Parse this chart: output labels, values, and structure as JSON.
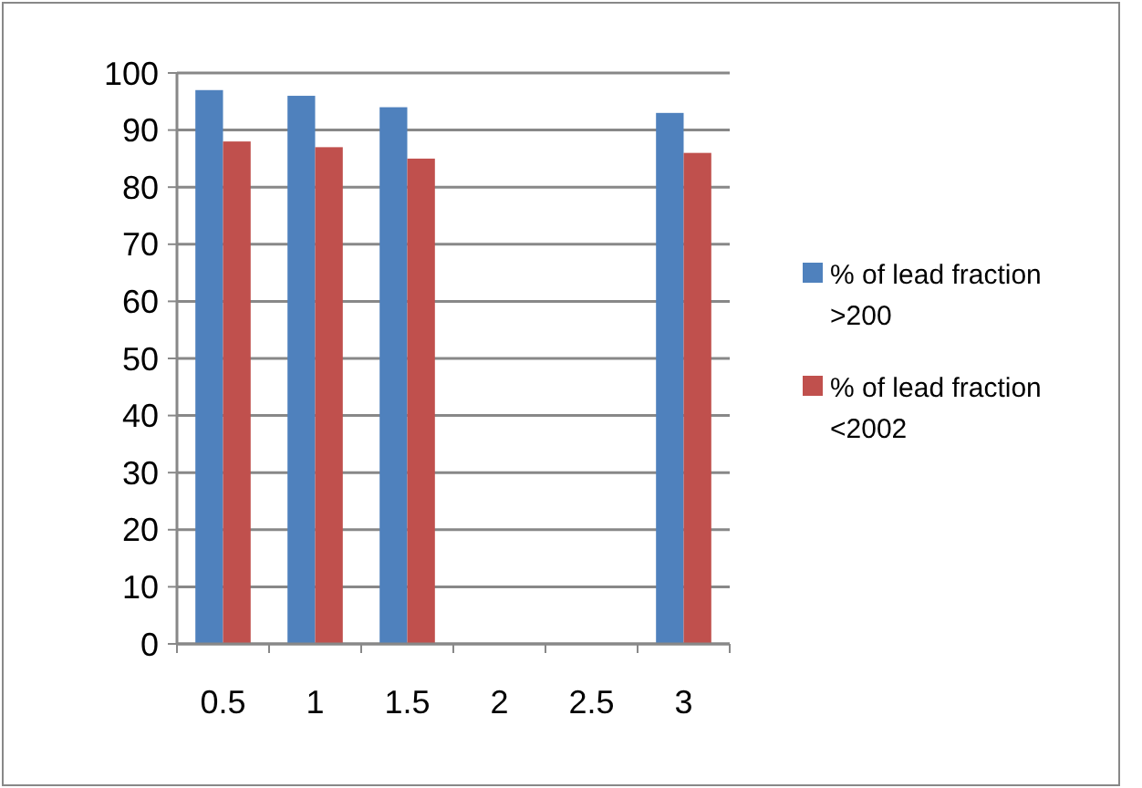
{
  "chart_data": {
    "type": "bar",
    "categories": [
      "0.5",
      "1",
      "1.5",
      "2",
      "2.5",
      "3"
    ],
    "series": [
      {
        "name": "% of lead fraction >200",
        "color": "#4f81bd",
        "values": [
          97,
          96,
          94,
          null,
          null,
          93
        ]
      },
      {
        "name": "% of lead fraction <2002",
        "color": "#c0504d",
        "values": [
          88,
          87,
          85,
          null,
          null,
          86
        ]
      }
    ],
    "ylim": [
      0,
      100
    ],
    "yticks": [
      0,
      10,
      20,
      30,
      40,
      50,
      60,
      70,
      80,
      90,
      100
    ],
    "grid": "y",
    "legend": "right"
  }
}
